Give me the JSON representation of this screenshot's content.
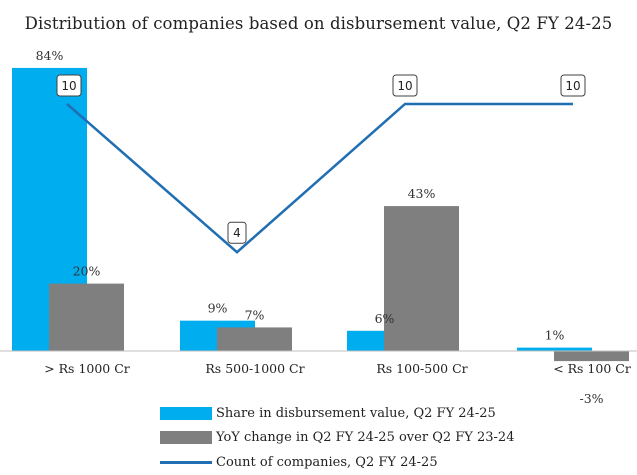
{
  "chart_data": {
    "type": "bar+line",
    "title": "Distribution of companies based on disbursement value, Q2 FY 24-25",
    "categories": [
      "> Rs 1000 Cr",
      "Rs 500-1000 Cr",
      "Rs 100-500 Cr",
      "< Rs 100 Cr"
    ],
    "series": [
      {
        "name": "Share in disbursement value, Q2 FY 24-25",
        "kind": "bar",
        "color": "#00AEEF",
        "values": [
          84,
          9,
          6,
          1
        ],
        "labels": [
          "84%",
          "9%",
          "6%",
          "1%"
        ]
      },
      {
        "name": "YoY change in Q2 FY 24-25 over Q2 FY 23-24",
        "kind": "bar",
        "color": "#7F7F7F",
        "values": [
          20,
          7,
          43,
          -3
        ],
        "labels": [
          "20%",
          "7%",
          "43%",
          "-3%"
        ]
      },
      {
        "name": "Count of companies, Q2 FY 24-25",
        "kind": "line",
        "color": "#1F6FB2",
        "values": [
          10,
          4,
          10,
          10
        ],
        "labels": [
          "10",
          "4",
          "10",
          "10"
        ]
      }
    ],
    "bar_axis_range": [
      -5,
      90
    ],
    "line_axis_range": [
      0,
      12
    ],
    "grid": false,
    "legend_position": "bottom"
  }
}
